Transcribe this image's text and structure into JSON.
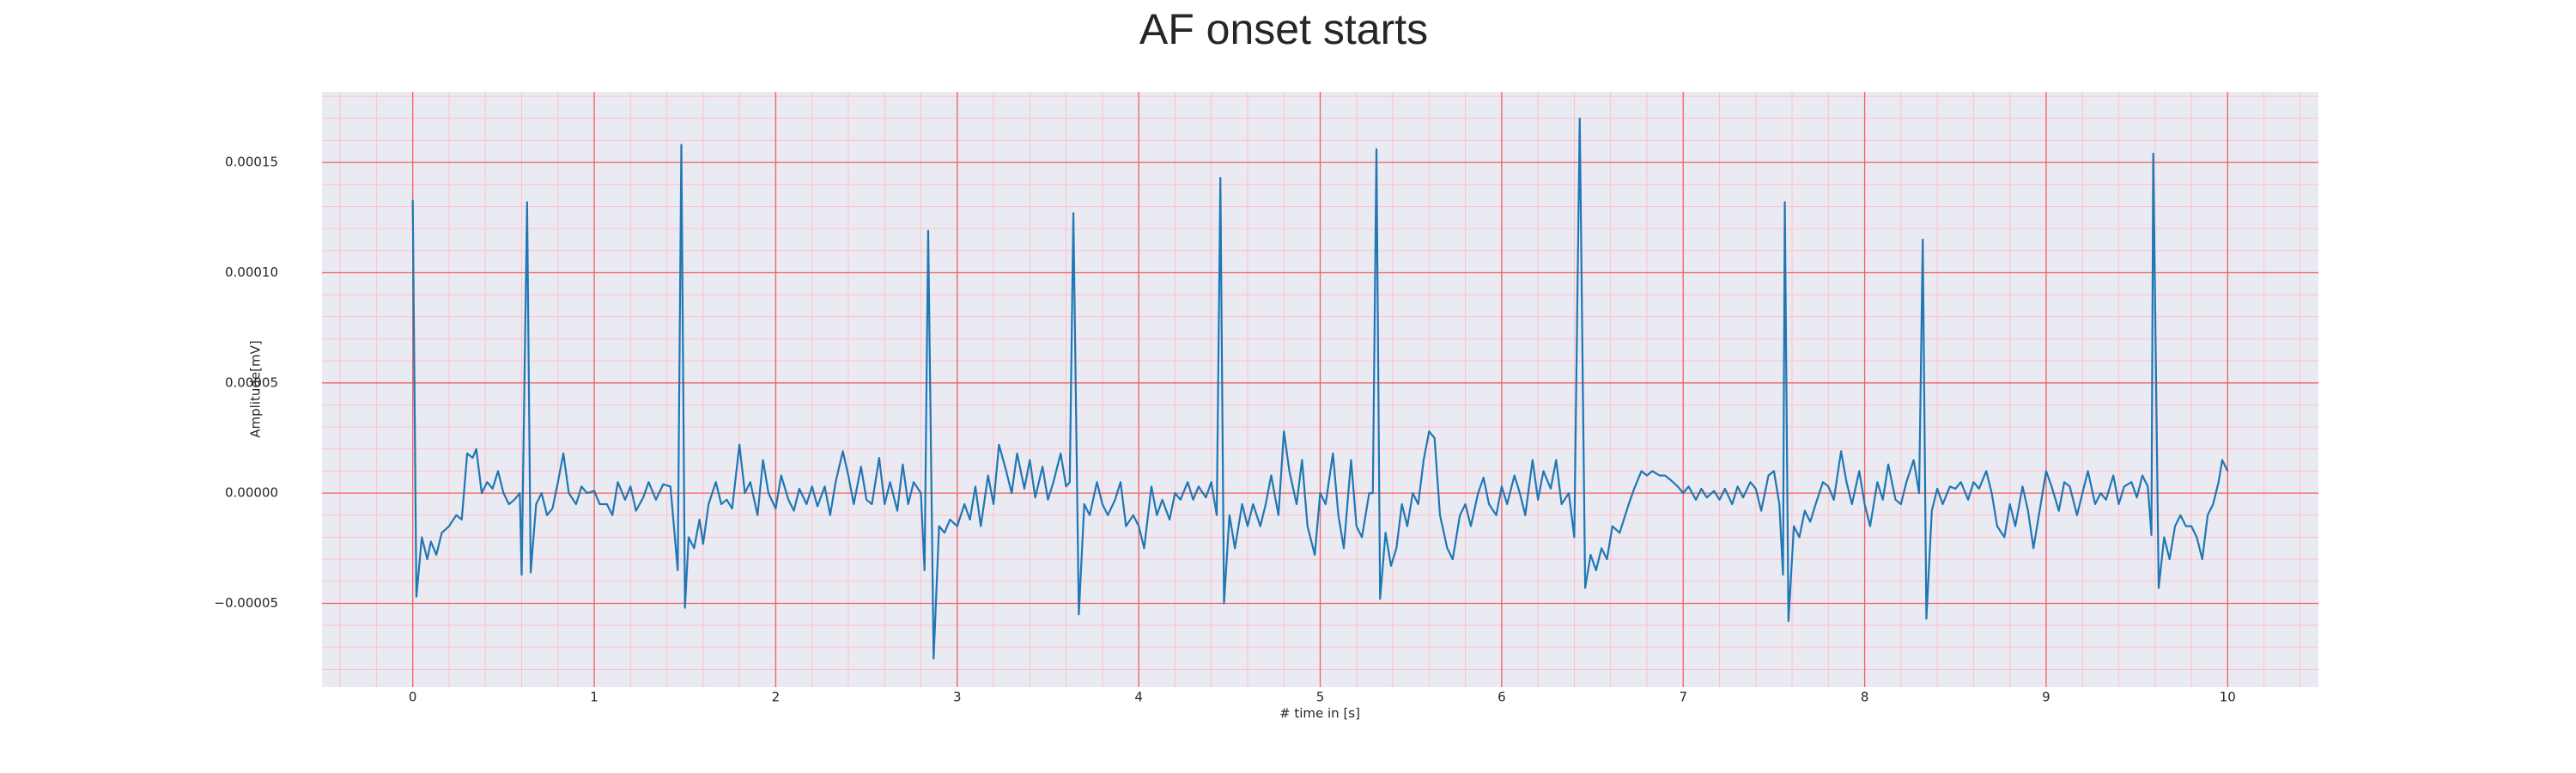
{
  "chart_data": {
    "type": "line",
    "title": "AF onset starts",
    "x_label": "# time in [s]",
    "y_label": "Amplitude[mV]",
    "color": "#1f77b4",
    "grid": true,
    "minor_grid": true,
    "xlim": [
      -0.5,
      10.5
    ],
    "xticks": [
      0,
      1,
      2,
      3,
      4,
      5,
      6,
      7,
      8,
      9,
      10
    ],
    "ylim": [
      -8.8e-05,
      0.000182
    ],
    "yticks": [
      {
        "value": -5e-05,
        "label": "−0.00005"
      },
      {
        "value": 0,
        "label": "0.00000"
      },
      {
        "value": 5e-05,
        "label": "0.00005"
      },
      {
        "value": 0.0001,
        "label": "0.00010"
      },
      {
        "value": 0.00015,
        "label": "0.00015"
      }
    ],
    "x": [
      0,
      0.02,
      0.05,
      0.08,
      0.1,
      0.13,
      0.16,
      0.2,
      0.24,
      0.27,
      0.3,
      0.33,
      0.35,
      0.38,
      0.41,
      0.44,
      0.47,
      0.5,
      0.53,
      0.56,
      0.59,
      0.6,
      0.63,
      0.65,
      0.68,
      0.71,
      0.74,
      0.77,
      0.8,
      0.83,
      0.86,
      0.9,
      0.93,
      0.96,
      1.0,
      1.03,
      1.07,
      1.1,
      1.13,
      1.17,
      1.2,
      1.23,
      1.27,
      1.3,
      1.34,
      1.38,
      1.42,
      1.46,
      1.48,
      1.5,
      1.52,
      1.55,
      1.58,
      1.6,
      1.63,
      1.67,
      1.7,
      1.73,
      1.76,
      1.8,
      1.83,
      1.86,
      1.9,
      1.93,
      1.96,
      2.0,
      2.03,
      2.07,
      2.1,
      2.13,
      2.17,
      2.2,
      2.23,
      2.27,
      2.3,
      2.33,
      2.37,
      2.4,
      2.43,
      2.47,
      2.5,
      2.53,
      2.57,
      2.6,
      2.63,
      2.67,
      2.7,
      2.73,
      2.76,
      2.8,
      2.82,
      2.84,
      2.87,
      2.9,
      2.93,
      2.96,
      3.0,
      3.04,
      3.07,
      3.1,
      3.13,
      3.17,
      3.2,
      3.23,
      3.27,
      3.3,
      3.33,
      3.37,
      3.4,
      3.43,
      3.47,
      3.5,
      3.53,
      3.57,
      3.6,
      3.62,
      3.64,
      3.67,
      3.7,
      3.73,
      3.77,
      3.8,
      3.83,
      3.87,
      3.9,
      3.93,
      3.97,
      4.0,
      4.03,
      4.07,
      4.1,
      4.13,
      4.17,
      4.2,
      4.23,
      4.27,
      4.3,
      4.33,
      4.37,
      4.4,
      4.43,
      4.45,
      4.47,
      4.5,
      4.53,
      4.57,
      4.6,
      4.63,
      4.67,
      4.7,
      4.73,
      4.77,
      4.8,
      4.83,
      4.87,
      4.9,
      4.93,
      4.97,
      5.0,
      5.03,
      5.07,
      5.1,
      5.13,
      5.17,
      5.2,
      5.23,
      5.27,
      5.29,
      5.31,
      5.33,
      5.36,
      5.39,
      5.42,
      5.45,
      5.48,
      5.51,
      5.54,
      5.57,
      5.6,
      5.63,
      5.66,
      5.7,
      5.73,
      5.77,
      5.8,
      5.83,
      5.87,
      5.9,
      5.93,
      5.97,
      6.0,
      6.03,
      6.07,
      6.1,
      6.13,
      6.17,
      6.2,
      6.23,
      6.27,
      6.3,
      6.33,
      6.37,
      6.4,
      6.43,
      6.46,
      6.49,
      6.52,
      6.55,
      6.58,
      6.61,
      6.65,
      6.7,
      6.73,
      6.77,
      6.8,
      6.83,
      6.87,
      6.9,
      6.93,
      6.97,
      7.0,
      7.03,
      7.07,
      7.1,
      7.13,
      7.17,
      7.2,
      7.23,
      7.27,
      7.3,
      7.33,
      7.37,
      7.4,
      7.43,
      7.47,
      7.5,
      7.53,
      7.55,
      7.56,
      7.58,
      7.61,
      7.64,
      7.67,
      7.7,
      7.73,
      7.77,
      7.8,
      7.83,
      7.87,
      7.9,
      7.93,
      7.97,
      8.0,
      8.03,
      8.07,
      8.1,
      8.13,
      8.17,
      8.2,
      8.23,
      8.27,
      8.3,
      8.32,
      8.34,
      8.37,
      8.4,
      8.43,
      8.47,
      8.5,
      8.53,
      8.57,
      8.6,
      8.63,
      8.67,
      8.7,
      8.73,
      8.77,
      8.8,
      8.83,
      8.87,
      8.9,
      8.93,
      8.97,
      9.0,
      9.03,
      9.07,
      9.1,
      9.13,
      9.17,
      9.2,
      9.23,
      9.27,
      9.3,
      9.33,
      9.37,
      9.4,
      9.43,
      9.47,
      9.5,
      9.53,
      9.56,
      9.58,
      9.59,
      9.62,
      9.65,
      9.68,
      9.71,
      9.74,
      9.77,
      9.8,
      9.83,
      9.86,
      9.89,
      9.92,
      9.95,
      9.97,
      10.0
    ],
    "values": [
      0.000133,
      -4.7e-05,
      -2e-05,
      -3e-05,
      -2.2e-05,
      -2.8e-05,
      -1.8e-05,
      -1.5e-05,
      -1e-05,
      -1.2e-05,
      1.8e-05,
      1.6e-05,
      2e-05,
      0,
      5e-06,
      2e-06,
      1e-05,
      0,
      -5e-06,
      -3e-06,
      0,
      -3.7e-05,
      0.000132,
      -3.6e-05,
      -5e-06,
      0,
      -1e-05,
      -7e-06,
      5e-06,
      1.8e-05,
      0,
      -5e-06,
      3e-06,
      0,
      1e-06,
      -5e-06,
      -5e-06,
      -1e-05,
      5e-06,
      -3e-06,
      3e-06,
      -8e-06,
      -2e-06,
      5e-06,
      -3e-06,
      4e-06,
      3e-06,
      -3.5e-05,
      0.000158,
      -5.2e-05,
      -2e-05,
      -2.5e-05,
      -1.2e-05,
      -2.3e-05,
      -5e-06,
      5e-06,
      -5e-06,
      -3e-06,
      -7e-06,
      2.2e-05,
      0,
      5e-06,
      -1e-05,
      1.5e-05,
      0,
      -7e-06,
      8e-06,
      -3e-06,
      -8e-06,
      2e-06,
      -5e-06,
      3e-06,
      -6e-06,
      3e-06,
      -1e-05,
      5e-06,
      1.9e-05,
      8e-06,
      -5e-06,
      1.2e-05,
      -3e-06,
      -5e-06,
      1.6e-05,
      -5e-06,
      5e-06,
      -8e-06,
      1.3e-05,
      -5e-06,
      5e-06,
      0,
      -3.5e-05,
      0.000119,
      -7.5e-05,
      -1.5e-05,
      -1.8e-05,
      -1.2e-05,
      -1.5e-05,
      -5e-06,
      -1.2e-05,
      3e-06,
      -1.5e-05,
      8e-06,
      -5e-06,
      2.2e-05,
      1e-05,
      0,
      1.8e-05,
      2e-06,
      1.5e-05,
      -2e-06,
      1.2e-05,
      -3e-06,
      5e-06,
      1.8e-05,
      3e-06,
      5e-06,
      0.000127,
      -5.5e-05,
      -5e-06,
      -1e-05,
      5e-06,
      -5e-06,
      -1e-05,
      -3e-06,
      5e-06,
      -1.5e-05,
      -1e-05,
      -1.5e-05,
      -2.5e-05,
      3e-06,
      -1e-05,
      -3e-06,
      -1.2e-05,
      0,
      -3e-06,
      5e-06,
      -3e-06,
      3e-06,
      -2e-06,
      5e-06,
      -1e-05,
      0.000143,
      -5e-05,
      -1e-05,
      -2.5e-05,
      -5e-06,
      -1.5e-05,
      -5e-06,
      -1.5e-05,
      -5e-06,
      8e-06,
      -1e-05,
      2.8e-05,
      1e-05,
      -5e-06,
      1.5e-05,
      -1.5e-05,
      -2.8e-05,
      0,
      -5e-06,
      1.8e-05,
      -1e-05,
      -2.5e-05,
      1.5e-05,
      -1.5e-05,
      -2e-05,
      0,
      0,
      0.000156,
      -4.8e-05,
      -1.8e-05,
      -3.3e-05,
      -2.5e-05,
      -5e-06,
      -1.5e-05,
      0,
      -5e-06,
      1.5e-05,
      2.8e-05,
      2.5e-05,
      -1e-05,
      -2.5e-05,
      -3e-05,
      -1e-05,
      -5e-06,
      -1.5e-05,
      0,
      7e-06,
      -5e-06,
      -1e-05,
      3e-06,
      -5e-06,
      8e-06,
      0,
      -1e-05,
      1.5e-05,
      -3e-06,
      1e-05,
      2e-06,
      1.5e-05,
      -5e-06,
      0,
      -2e-05,
      0.00017,
      -4.3e-05,
      -2.8e-05,
      -3.5e-05,
      -2.5e-05,
      -3e-05,
      -1.5e-05,
      -1.8e-05,
      -5e-06,
      2e-06,
      1e-05,
      8e-06,
      1e-05,
      8e-06,
      8e-06,
      6e-06,
      3e-06,
      0,
      3e-06,
      -3e-06,
      2e-06,
      -2e-06,
      1e-06,
      -3e-06,
      2e-06,
      -5e-06,
      3e-06,
      -2e-06,
      5e-06,
      2e-06,
      -8e-06,
      8e-06,
      1e-05,
      -5e-06,
      -3.7e-05,
      0.000132,
      -5.8e-05,
      -1.5e-05,
      -2e-05,
      -8e-06,
      -1.3e-05,
      -5e-06,
      5e-06,
      3e-06,
      -3e-06,
      1.9e-05,
      5e-06,
      -5e-06,
      1e-05,
      -5e-06,
      -1.5e-05,
      5e-06,
      -3e-06,
      1.3e-05,
      -3e-06,
      -5e-06,
      5e-06,
      1.5e-05,
      0,
      0.000115,
      -5.7e-05,
      -8e-06,
      2e-06,
      -5e-06,
      3e-06,
      2e-06,
      5e-06,
      -3e-06,
      5e-06,
      2e-06,
      1e-05,
      0,
      -1.5e-05,
      -2e-05,
      -5e-06,
      -1.5e-05,
      3e-06,
      -8e-06,
      -2.5e-05,
      -5e-06,
      1e-05,
      3e-06,
      -8e-06,
      5e-06,
      3e-06,
      -1e-05,
      0,
      1e-05,
      -5e-06,
      0,
      -3e-06,
      8e-06,
      -5e-06,
      3e-06,
      5e-06,
      -2e-06,
      8e-06,
      3e-06,
      -1.9e-05,
      0.000154,
      -4.3e-05,
      -2e-05,
      -3e-05,
      -1.5e-05,
      -1e-05,
      -1.5e-05,
      -1.5e-05,
      -2e-05,
      -3e-05,
      -1e-05,
      -5e-06,
      5e-06,
      1.5e-05,
      1e-05
    ]
  }
}
